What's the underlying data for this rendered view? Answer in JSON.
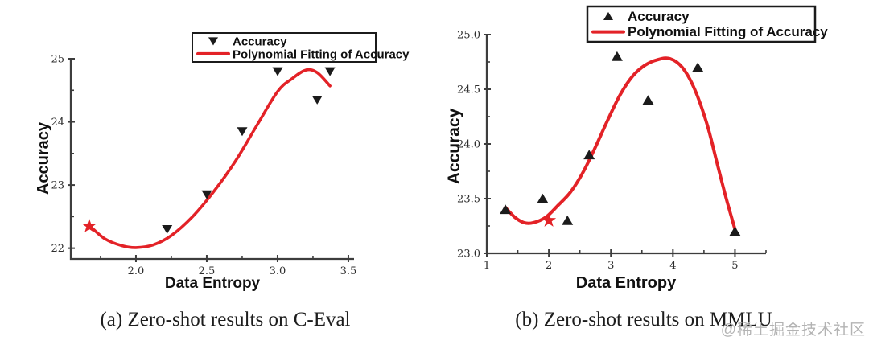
{
  "watermark": "@稀土掘金技术社区",
  "colors": {
    "fit_line_red": "#e32227",
    "marker_black": "#1b1b1b",
    "axis_gray": "#3d3d3d",
    "legend_border": "#1b1b1b",
    "tick_label": "#2e2e2e",
    "caption_black": "#1d1d1d",
    "watermark_gray": "#b3b3b3"
  },
  "chart_data": [
    {
      "id": "c_eval",
      "type": "scatter",
      "caption": "(a) Zero-shot results on C-Eval",
      "xlabel": "Data Entropy",
      "ylabel": "Accuracy",
      "grid": false,
      "legend": {
        "position": "top-right",
        "entries": [
          {
            "label": "Accuracy",
            "glyph": "triangle-down"
          },
          {
            "label": "Polynomial Fitting of Accuracy",
            "glyph": "red-line"
          }
        ]
      },
      "xlim": [
        1.54,
        3.54
      ],
      "ylim": [
        21.83,
        25.0
      ],
      "xticks": {
        "values": [
          2.0,
          2.5,
          3.0,
          3.5
        ],
        "labels": [
          "2.0",
          "2.5",
          "3.0",
          "3.5"
        ],
        "minor": [
          1.75,
          2.25,
          2.75,
          3.25
        ]
      },
      "yticks": {
        "values": [
          22,
          23,
          24,
          25
        ],
        "labels": [
          "22",
          "23",
          "24",
          "25"
        ],
        "minor": [
          22.5,
          23.5,
          24.5
        ]
      },
      "series": [
        {
          "name": "Accuracy",
          "marker": "triangle-down",
          "points": [
            [
              2.22,
              22.3
            ],
            [
              2.5,
              22.85
            ],
            [
              2.75,
              23.85
            ],
            [
              3.0,
              24.8
            ],
            [
              3.28,
              24.35
            ],
            [
              3.37,
              24.8
            ]
          ]
        }
      ],
      "star_point": [
        1.67,
        22.35
      ],
      "fit_curve": {
        "name": "Polynomial Fitting of Accuracy",
        "points": [
          [
            1.67,
            22.36
          ],
          [
            1.78,
            22.15
          ],
          [
            1.9,
            22.04
          ],
          [
            2.0,
            22.01
          ],
          [
            2.12,
            22.05
          ],
          [
            2.25,
            22.2
          ],
          [
            2.4,
            22.5
          ],
          [
            2.55,
            22.9
          ],
          [
            2.7,
            23.37
          ],
          [
            2.85,
            23.93
          ],
          [
            3.0,
            24.48
          ],
          [
            3.1,
            24.68
          ],
          [
            3.2,
            24.82
          ],
          [
            3.28,
            24.78
          ],
          [
            3.37,
            24.57
          ]
        ]
      }
    },
    {
      "id": "mmlu",
      "type": "scatter",
      "caption": "(b) Zero-shot results on MMLU",
      "xlabel": "Data Entropy",
      "ylabel": "Accuracy",
      "grid": false,
      "legend": {
        "position": "top",
        "entries": [
          {
            "label": "Accuracy",
            "glyph": "triangle-up"
          },
          {
            "label": "Polynomial Fitting of Accuracy",
            "glyph": "red-line"
          }
        ]
      },
      "xlim": [
        1.0,
        5.5
      ],
      "ylim": [
        23.0,
        25.0
      ],
      "xticks": {
        "values": [
          1,
          2,
          3,
          4,
          5
        ],
        "labels": [
          "1",
          "2",
          "3",
          "4",
          "5"
        ],
        "minor": [
          1.5,
          2.5,
          3.5,
          4.5,
          5.5
        ]
      },
      "yticks": {
        "values": [
          23.0,
          23.5,
          24.0,
          24.5,
          25.0
        ],
        "labels": [
          "23.0",
          "23.5",
          "24.0",
          "24.5",
          "25.0"
        ],
        "minor": [
          23.25,
          23.75,
          24.25,
          24.75
        ]
      },
      "series": [
        {
          "name": "Accuracy",
          "marker": "triangle-up",
          "points": [
            [
              1.3,
              23.4
            ],
            [
              1.9,
              23.5
            ],
            [
              2.3,
              23.3
            ],
            [
              2.65,
              23.9
            ],
            [
              3.1,
              24.8
            ],
            [
              3.6,
              24.4
            ],
            [
              4.4,
              24.7
            ],
            [
              5.0,
              23.2
            ]
          ]
        }
      ],
      "star_point": [
        2.0,
        23.3
      ],
      "fit_curve": {
        "name": "Polynomial Fitting of Accuracy",
        "points": [
          [
            1.3,
            23.42
          ],
          [
            1.45,
            23.33
          ],
          [
            1.6,
            23.28
          ],
          [
            1.75,
            23.28
          ],
          [
            1.95,
            23.33
          ],
          [
            2.15,
            23.44
          ],
          [
            2.35,
            23.56
          ],
          [
            2.55,
            23.74
          ],
          [
            2.75,
            23.97
          ],
          [
            2.95,
            24.22
          ],
          [
            3.15,
            24.45
          ],
          [
            3.35,
            24.62
          ],
          [
            3.55,
            24.72
          ],
          [
            3.75,
            24.77
          ],
          [
            3.95,
            24.78
          ],
          [
            4.15,
            24.7
          ],
          [
            4.35,
            24.5
          ],
          [
            4.55,
            24.18
          ],
          [
            4.7,
            23.85
          ],
          [
            4.85,
            23.52
          ],
          [
            5.0,
            23.22
          ]
        ]
      }
    }
  ]
}
